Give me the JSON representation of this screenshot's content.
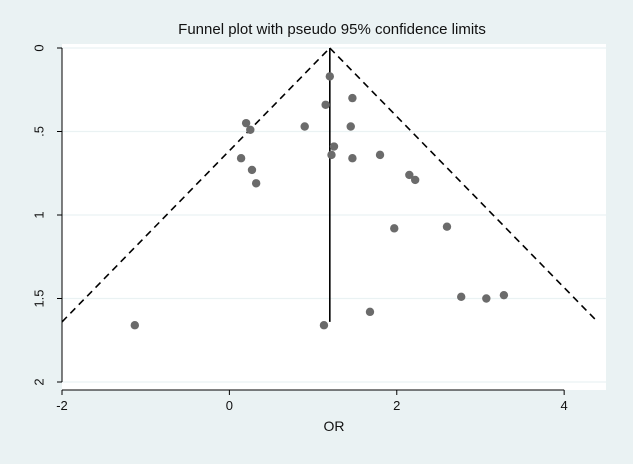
{
  "chart_data": {
    "type": "scatter",
    "title": "Funnel plot with pseudo 95% confidence limits",
    "xlabel": "OR",
    "ylabel": "",
    "xlim": [
      -2,
      4.5
    ],
    "ylim": [
      2,
      0
    ],
    "y_reversed": true,
    "x_ticks": [
      -2,
      0,
      2,
      4
    ],
    "y_ticks": [
      0,
      0.5,
      1,
      1.5,
      2
    ],
    "x_tick_labels": [
      "-2",
      "0",
      "2",
      "4"
    ],
    "y_tick_labels": [
      "0",
      ".5",
      "1",
      "1.5",
      "2"
    ],
    "grid": "horizontal",
    "pooled_estimate": 1.2,
    "funnel_limits": {
      "apex": [
        1.2,
        0
      ],
      "left_base": [
        -2,
        1.64
      ],
      "right_base": [
        4.4,
        1.64
      ]
    },
    "points": [
      {
        "x": 1.2,
        "y": 0.17
      },
      {
        "x": 1.15,
        "y": 0.34
      },
      {
        "x": 1.47,
        "y": 0.3
      },
      {
        "x": 0.2,
        "y": 0.45
      },
      {
        "x": 0.25,
        "y": 0.49
      },
      {
        "x": 0.9,
        "y": 0.47
      },
      {
        "x": 1.45,
        "y": 0.47
      },
      {
        "x": 1.25,
        "y": 0.59
      },
      {
        "x": 1.22,
        "y": 0.64
      },
      {
        "x": 1.47,
        "y": 0.66
      },
      {
        "x": 1.8,
        "y": 0.64
      },
      {
        "x": 0.14,
        "y": 0.66
      },
      {
        "x": 0.27,
        "y": 0.73
      },
      {
        "x": 0.32,
        "y": 0.81
      },
      {
        "x": 2.15,
        "y": 0.76
      },
      {
        "x": 2.22,
        "y": 0.79
      },
      {
        "x": 1.97,
        "y": 1.08
      },
      {
        "x": 2.6,
        "y": 1.07
      },
      {
        "x": 2.77,
        "y": 1.49
      },
      {
        "x": 3.07,
        "y": 1.5
      },
      {
        "x": 3.28,
        "y": 1.48
      },
      {
        "x": 1.68,
        "y": 1.58
      },
      {
        "x": -1.13,
        "y": 1.66
      },
      {
        "x": 1.13,
        "y": 1.66
      }
    ]
  },
  "colors": {
    "background": "#eaf2f3",
    "plot_area": "#ffffff",
    "grid": "#eaf2f3",
    "points": "#6b6b6b",
    "lines": "#000000",
    "text": "#111111"
  }
}
